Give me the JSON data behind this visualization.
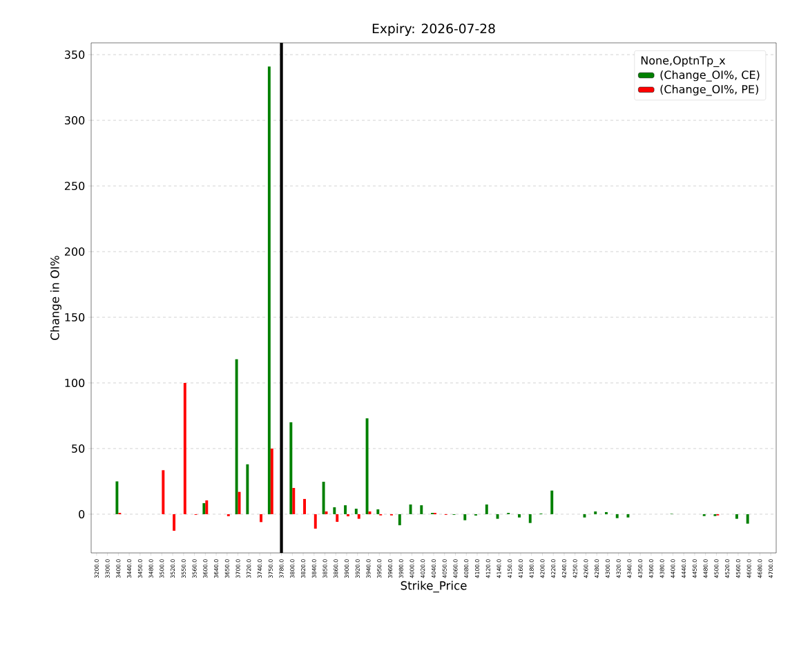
{
  "chart_data": {
    "type": "bar",
    "title": "Expiry: 2026-07-28",
    "xlabel": "Strike_Price",
    "ylabel": "Change in OI%",
    "legend_title": "None,OptnTp_x",
    "categories": [
      "3200.0",
      "3300.0",
      "3400.0",
      "3440.0",
      "3450.0",
      "3480.0",
      "3500.0",
      "3520.0",
      "3550.0",
      "3560.0",
      "3600.0",
      "3640.0",
      "3650.0",
      "3700.0",
      "3720.0",
      "3740.0",
      "3750.0",
      "3780.0",
      "3800.0",
      "3820.0",
      "3840.0",
      "3850.0",
      "3860.0",
      "3900.0",
      "3920.0",
      "3940.0",
      "3950.0",
      "3960.0",
      "3980.0",
      "4000.0",
      "4020.0",
      "4040.0",
      "4050.0",
      "4060.0",
      "4080.0",
      "4100.0",
      "4120.0",
      "4140.0",
      "4150.0",
      "4160.0",
      "4180.0",
      "4200.0",
      "4220.0",
      "4240.0",
      "4250.0",
      "4260.0",
      "4280.0",
      "4300.0",
      "4320.0",
      "4340.0",
      "4350.0",
      "4360.0",
      "4380.0",
      "4400.0",
      "4440.0",
      "4450.0",
      "4480.0",
      "4500.0",
      "4520.0",
      "4560.0",
      "4600.0",
      "4680.0",
      "4700.0"
    ],
    "series": [
      {
        "name": " (Change_OI%, CE)",
        "color": "#008000",
        "values": [
          0,
          0,
          25,
          0,
          0,
          0,
          0,
          0,
          0,
          0,
          8.4,
          0,
          0,
          118,
          38,
          0,
          341,
          0,
          70,
          0,
          0,
          24.7,
          5.3,
          6.8,
          4.2,
          73,
          3.7,
          0,
          -8.4,
          7.4,
          6.8,
          1,
          0,
          -0.5,
          -4.6,
          -1,
          7.4,
          -3.5,
          1,
          -2.5,
          -6.7,
          0.5,
          18,
          0,
          0,
          -2.5,
          2.1,
          1.6,
          -3,
          -2.5,
          0,
          0,
          0,
          0.3,
          0,
          0,
          -1.4,
          -1.4,
          0,
          -3.5,
          -7.2,
          0,
          0
        ]
      },
      {
        "name": " (Change_OI%, PE)",
        "color": "#ff0000",
        "values": [
          0,
          0,
          1,
          0,
          0,
          0,
          33.5,
          -12.6,
          100,
          -0.5,
          10.5,
          0,
          -1.5,
          17,
          0,
          -6,
          50,
          0,
          20,
          11.6,
          -11,
          2.1,
          -5.8,
          -1.6,
          -3.5,
          2.1,
          -0.9,
          -0.9,
          0,
          0,
          0,
          1,
          -0.5,
          0,
          0,
          0,
          0,
          0,
          0,
          0,
          0,
          0,
          0,
          0,
          0,
          0,
          0,
          0,
          0,
          0,
          0,
          0,
          0,
          0,
          0,
          0,
          0,
          -0.9,
          0,
          0,
          0,
          0,
          0
        ]
      }
    ],
    "ylim": [
      -29.5,
      359
    ],
    "yticks": [
      0,
      50,
      100,
      150,
      200,
      250,
      300,
      350
    ],
    "ref_lines": [
      {
        "axis": "x",
        "value": "3780.0",
        "color": "#000000"
      }
    ],
    "grid": "y",
    "legend": "top right"
  }
}
